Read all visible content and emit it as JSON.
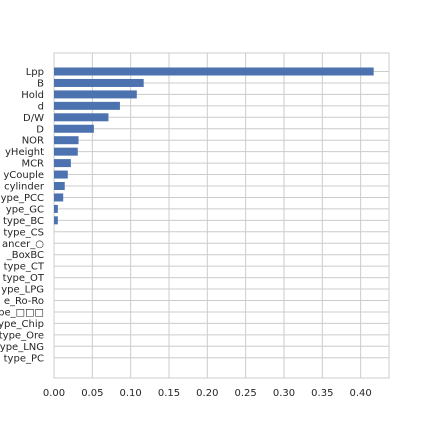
{
  "chart_data": {
    "type": "bar",
    "orientation": "horizontal",
    "categories": [
      "Lpp",
      "B",
      "Hold",
      "d",
      "D/W",
      "D",
      "NOR",
      "yHeight",
      "MCR",
      "yCouple",
      "cylinder",
      "ype_PCC",
      "ype_GC",
      "type_BC",
      "type_CS",
      "ancer_○",
      "_BoxBC",
      "type_CT",
      "type_OT",
      "ype_LPG",
      "e_Ro-Ro",
      "ype_□□□",
      "ype_Chip",
      "type_Ore",
      "ype_LNG",
      "type_PC"
    ],
    "values": [
      0.417,
      0.117,
      0.108,
      0.086,
      0.071,
      0.052,
      0.032,
      0.031,
      0.022,
      0.018,
      0.014,
      0.012,
      0.005,
      0.005,
      0.0,
      0.0,
      0.0,
      0.0,
      0.0,
      0.0,
      0.0,
      0.0,
      0.0,
      0.0,
      0.0,
      0.0
    ],
    "xlim": [
      0,
      0.437
    ],
    "x_ticks": [
      "0.00",
      "0.05",
      "0.10",
      "0.15",
      "0.20",
      "0.25",
      "0.30",
      "0.35",
      "0.40"
    ],
    "x_tick_values": [
      0,
      0.05,
      0.1,
      0.15,
      0.2,
      0.25,
      0.3,
      0.35,
      0.4
    ],
    "title": "",
    "xlabel": "",
    "ylabel": "",
    "grid": true,
    "bar_color": "#4c72b0",
    "grid_color": "#cccccc"
  }
}
